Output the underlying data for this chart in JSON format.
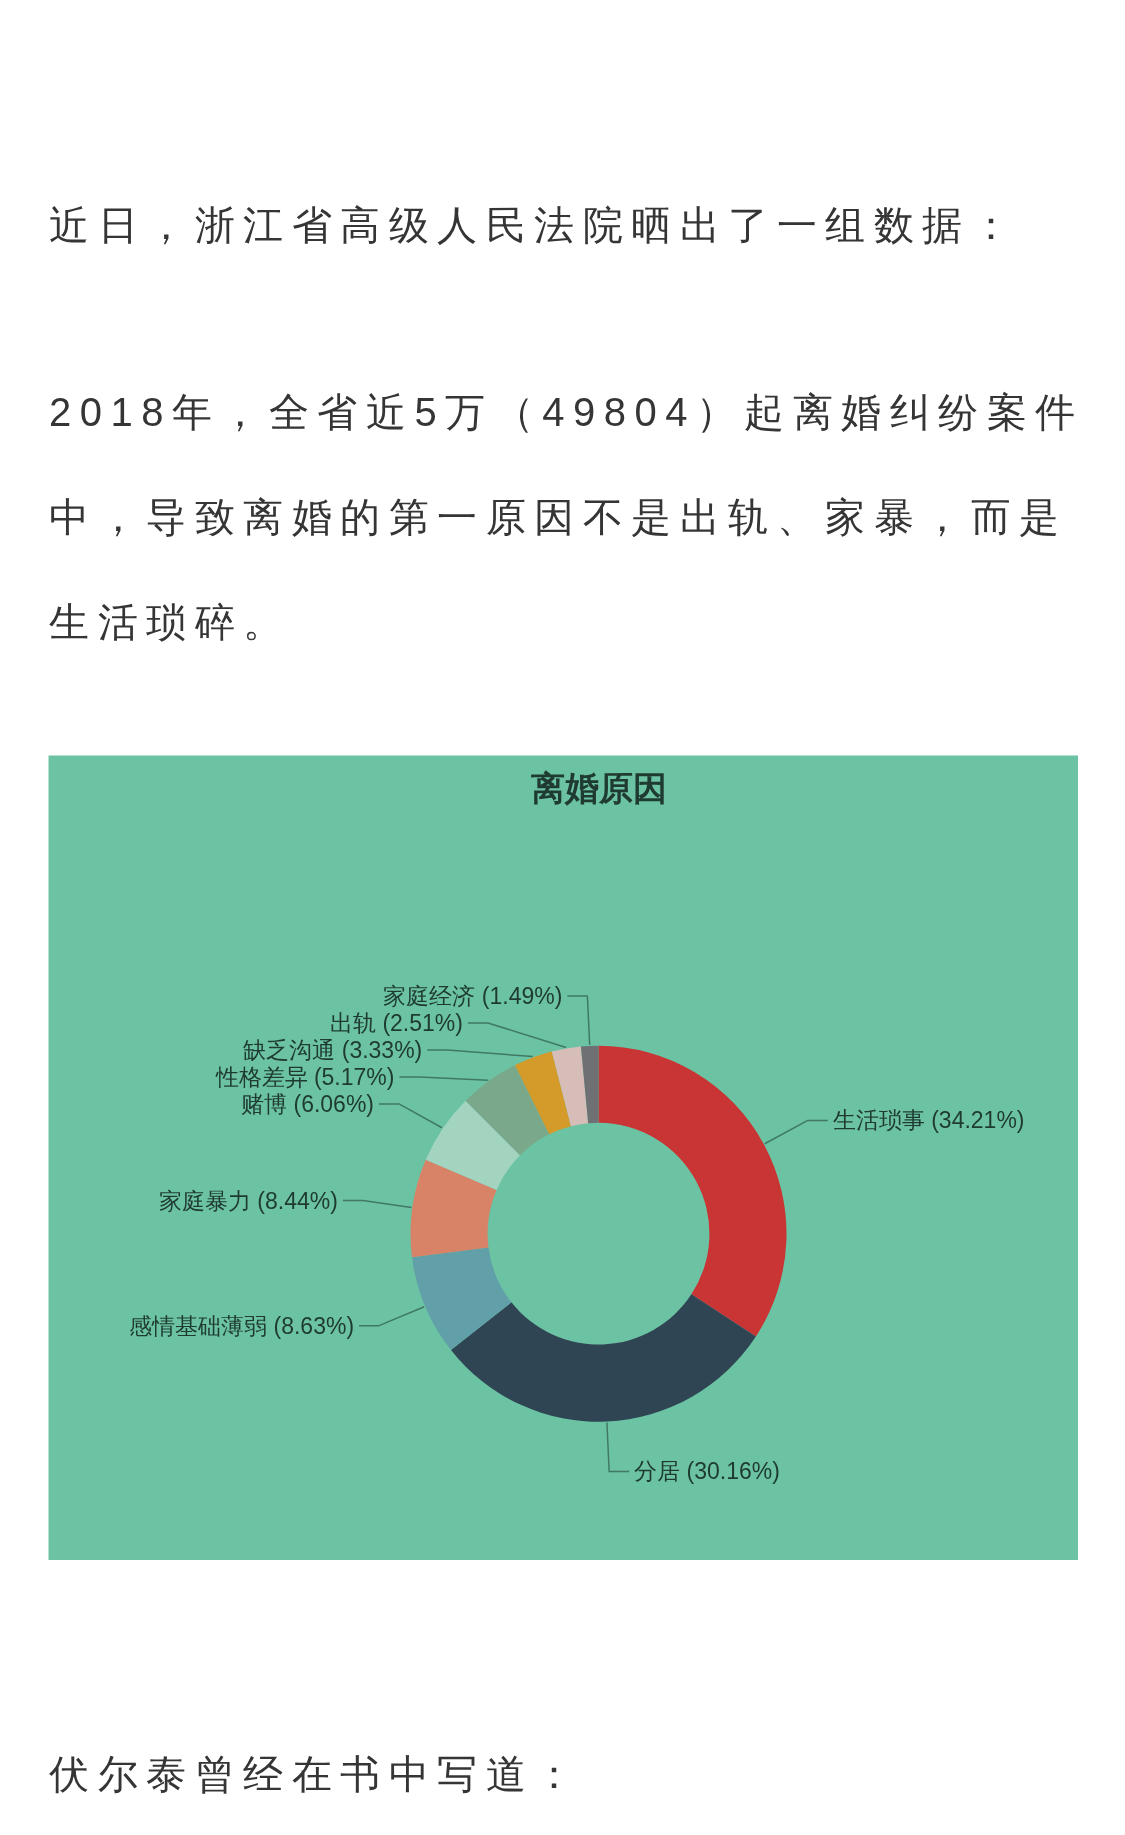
{
  "chart_data": {
    "type": "donut",
    "title": "离婚原因",
    "categories": [
      "生活琐事",
      "分居",
      "感情基础薄弱",
      "家庭暴力",
      "赌博",
      "性格差异",
      "缺乏沟通",
      "出轨",
      "家庭经济"
    ],
    "values": [
      34.21,
      30.16,
      8.63,
      8.44,
      6.06,
      5.17,
      3.33,
      2.51,
      1.49
    ],
    "value_labels": [
      "(34.21%)",
      "(30.16%)",
      "(8.63%)",
      "(8.44%)",
      "(6.06%)",
      "(5.17%)",
      "(3.33%)",
      "(2.51%)",
      "(1.49%)"
    ],
    "colors": [
      "#c93434",
      "#2f4554",
      "#61a0a8",
      "#d88268",
      "#a3d4c0",
      "#7aa88a",
      "#d49a2a",
      "#d6bdb7",
      "#6e7074"
    ],
    "annotations": [
      "近日，浙江省高级人民法院晒出了一组数据：",
      "2018年，全省近5万（49804）起离婚纠纷案件中，导致离婚的第一原因不是出轨、家暴，而是生活琐碎。",
      "伏尔泰曾经在书中写道："
    ]
  }
}
